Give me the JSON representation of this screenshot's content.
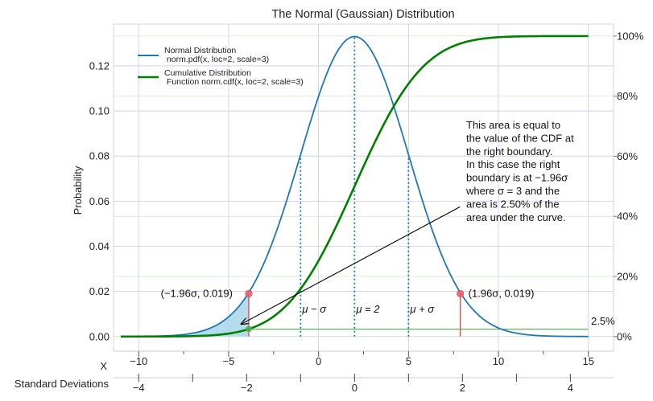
{
  "chart_data": {
    "type": "line",
    "title": "The Normal (Gaussian) Distribution",
    "ylabel": "Probability",
    "xlabel": "X",
    "secondary_xlabel": "Standard Deviations",
    "xlim": [
      -11.4,
      16.4
    ],
    "ylim": [
      -0.0065,
      0.1385
    ],
    "right_ylim": [
      -0.0488,
      1.0398
    ],
    "x_ticks": [
      -10,
      -5,
      0,
      5,
      10,
      15
    ],
    "x_tick_labels": [
      "−10",
      "−5",
      "0",
      "5",
      "10",
      "15"
    ],
    "sd_ticks": [
      -4,
      -2,
      0,
      2,
      4
    ],
    "sd_tick_labels": [
      "−4",
      "−2",
      "0",
      "2",
      "4"
    ],
    "y_ticks": [
      0.0,
      0.02,
      0.04,
      0.06,
      0.08,
      0.1,
      0.12
    ],
    "y_tick_labels": [
      "0.00",
      "0.02",
      "0.04",
      "0.06",
      "0.08",
      "0.10",
      "0.12"
    ],
    "right_y_ticks": [
      0,
      0.2,
      0.4,
      0.6,
      0.8,
      1.0
    ],
    "right_y_tick_labels": [
      "0%",
      "20%",
      "40%",
      "60%",
      "80%",
      "100%"
    ],
    "distribution": {
      "mean": 2,
      "sd": 3,
      "x_start": -11,
      "x_end": 15
    },
    "series": [
      {
        "name": "Normal Distribution\n norm.pdf(x, loc=2, scale=3)",
        "kind": "pdf",
        "color": "#1f77b4"
      },
      {
        "name": "Cumulative Distribution\n Function norm.cdf(x, loc=2, scale=3)",
        "kind": "cdf",
        "color": "#008000"
      }
    ],
    "shaded_region": {
      "x_from": -11,
      "x_to": -3.88,
      "color": "#a8d6ea"
    },
    "points": [
      {
        "x": -3.88,
        "y": 0.019,
        "label": "(−1.96σ, 0.019)"
      },
      {
        "x": 7.88,
        "y": 0.019,
        "label": "(1.96σ, 0.019)"
      }
    ],
    "cdf_point": {
      "x": -3.88,
      "y": 0.025
    },
    "cdf_level": {
      "y": 0.025,
      "label": "2.5%"
    },
    "vlines": [
      {
        "x": -1,
        "label": "μ − σ"
      },
      {
        "x": 2,
        "label": "μ = 2"
      },
      {
        "x": 5,
        "label": "μ + σ"
      }
    ],
    "annotation": {
      "lines": [
        "This area is equal to",
        "the value of the CDF at",
        "the right boundary.",
        "In this case the right",
        "boundary is at −1.96σ",
        "where σ = 3 and the",
        " area is 2.50% of the",
        " area under the curve."
      ],
      "arrow_from": {
        "x": 8.0,
        "y": 0.0575
      },
      "arrow_to": {
        "x": -4.3,
        "y": 0.0055
      }
    },
    "grid": true,
    "legend_position": "upper-left"
  }
}
